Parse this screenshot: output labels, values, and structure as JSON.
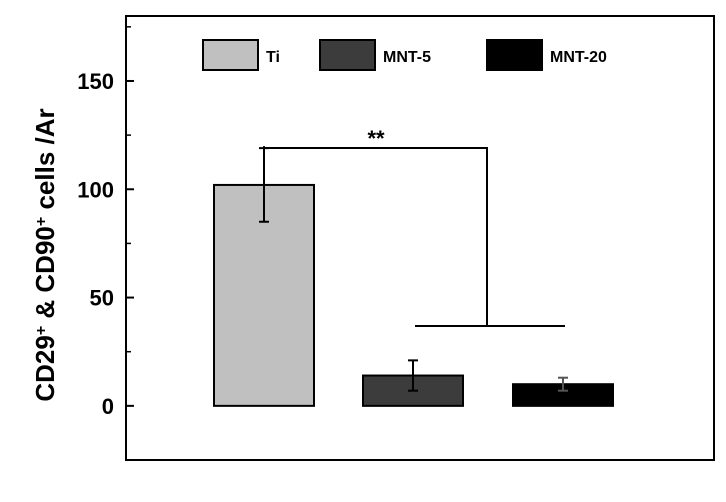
{
  "chart_data": {
    "type": "bar",
    "categories": [
      "Ti",
      "MNT-5",
      "MNT-20"
    ],
    "values": [
      102,
      14,
      10
    ],
    "errors": [
      17,
      7,
      3
    ],
    "colors": [
      "#c0c0c0",
      "#3c3c3c",
      "#000000"
    ],
    "title": "",
    "xlabel": "",
    "ylabel_parts": [
      "CD29",
      "+",
      " & CD90",
      "+",
      " cells /Ar"
    ],
    "ylim": [
      -25,
      180
    ],
    "yticks": [
      0,
      50,
      100,
      150
    ],
    "legend": {
      "placement": "top",
      "entries": [
        "Ti",
        "MNT-5",
        "MNT-20"
      ]
    },
    "significance": {
      "label": "**",
      "from": "Ti",
      "to": [
        "MNT-5",
        "MNT-20"
      ]
    }
  }
}
